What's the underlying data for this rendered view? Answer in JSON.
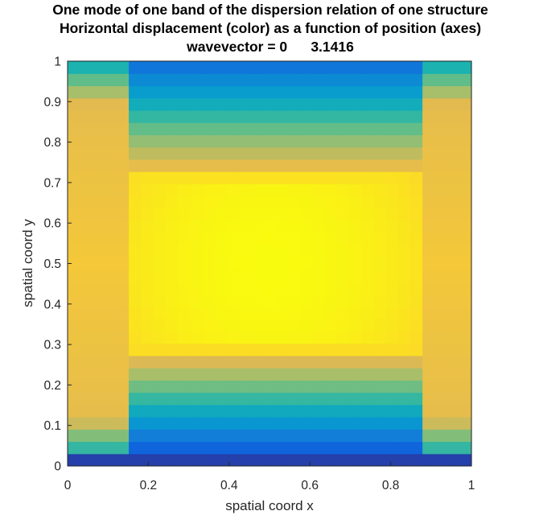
{
  "chart_data": {
    "type": "heatmap",
    "title": [
      "One mode of one band of the dispersion relation of one structure",
      "Horizontal displacement (color) as a function of position (axes)",
      "wavevector = 0      3.1416"
    ],
    "xlabel": "spatial coord x",
    "ylabel": "spatial coord y",
    "xlim": [
      0,
      1
    ],
    "ylim": [
      0,
      1
    ],
    "xticks": [
      0,
      0.2,
      0.4,
      0.6,
      0.8,
      1
    ],
    "xtick_labels": [
      "0",
      "0.2",
      "0.4",
      "0.6",
      "0.8",
      "1"
    ],
    "yticks": [
      0,
      0.1,
      0.2,
      0.3,
      0.4,
      0.5,
      0.6,
      0.7,
      0.8,
      0.9,
      1
    ],
    "ytick_labels": [
      "0",
      "0.1",
      "0.2",
      "0.3",
      "0.4",
      "0.5",
      "0.6",
      "0.7",
      "0.8",
      "0.9",
      "1"
    ],
    "colormap": "parula",
    "grid": false,
    "grid_resolution": [
      33,
      33
    ],
    "pattern": {
      "description_values": "normalized displacement 0 (dark blue) to 1 (yellow)",
      "center_value": 1.0,
      "center_xy": [
        0.5,
        0.5
      ],
      "inner_region_x": [
        0.14,
        0.88
      ],
      "inner_region_y": [
        0.12,
        0.88
      ],
      "bottom_edge_value": 0.05,
      "top_edge_value": 0.22,
      "left_edge_value": 0.88,
      "right_edge_value": 0.86
    }
  }
}
